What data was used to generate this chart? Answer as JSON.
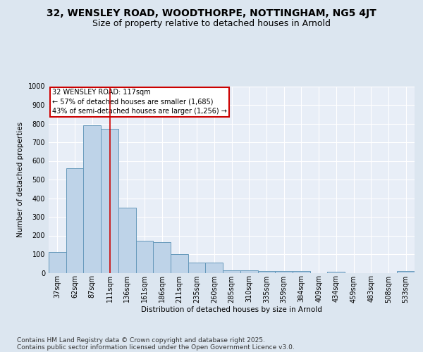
{
  "title_line1": "32, WENSLEY ROAD, WOODTHORPE, NOTTINGHAM, NG5 4JT",
  "title_line2": "Size of property relative to detached houses in Arnold",
  "xlabel": "Distribution of detached houses by size in Arnold",
  "ylabel": "Number of detached properties",
  "categories": [
    "37sqm",
    "62sqm",
    "87sqm",
    "111sqm",
    "136sqm",
    "161sqm",
    "186sqm",
    "211sqm",
    "235sqm",
    "260sqm",
    "285sqm",
    "310sqm",
    "335sqm",
    "359sqm",
    "384sqm",
    "409sqm",
    "434sqm",
    "459sqm",
    "483sqm",
    "508sqm",
    "533sqm"
  ],
  "values": [
    110,
    560,
    790,
    770,
    350,
    170,
    165,
    100,
    55,
    55,
    15,
    12,
    10,
    10,
    8,
    0,
    5,
    0,
    0,
    0,
    8
  ],
  "bar_color": "#bed3e8",
  "bar_edge_color": "#6699bb",
  "red_line_x": 3.0,
  "annotation_title": "32 WENSLEY ROAD: 117sqm",
  "annotation_line1": "← 57% of detached houses are smaller (1,685)",
  "annotation_line2": "43% of semi-detached houses are larger (1,256) →",
  "annotation_box_color": "#cc0000",
  "ylim": [
    0,
    1000
  ],
  "yticks": [
    0,
    100,
    200,
    300,
    400,
    500,
    600,
    700,
    800,
    900,
    1000
  ],
  "bg_color": "#dce6f0",
  "plot_bg_color": "#e8eef7",
  "footer_line1": "Contains HM Land Registry data © Crown copyright and database right 2025.",
  "footer_line2": "Contains public sector information licensed under the Open Government Licence v3.0.",
  "title_fontsize": 10,
  "subtitle_fontsize": 9,
  "label_fontsize": 7.5,
  "tick_fontsize": 7,
  "footer_fontsize": 6.5
}
